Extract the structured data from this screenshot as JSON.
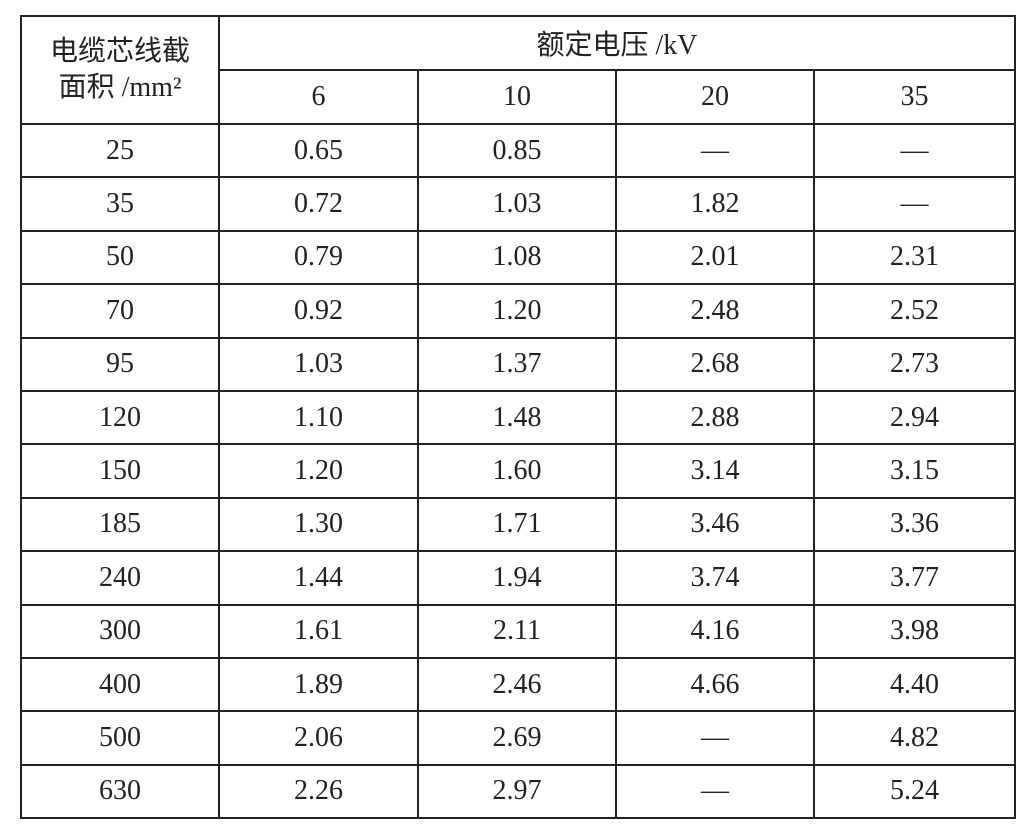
{
  "table": {
    "row_header_lines": [
      "电缆芯线截",
      "面积 /mm²"
    ],
    "group_header": "额定电压 /kV",
    "voltages": [
      "6",
      "10",
      "20",
      "35"
    ],
    "rows": [
      [
        "25",
        "0.65",
        "0.85",
        "—",
        "—"
      ],
      [
        "35",
        "0.72",
        "1.03",
        "1.82",
        "—"
      ],
      [
        "50",
        "0.79",
        "1.08",
        "2.01",
        "2.31"
      ],
      [
        "70",
        "0.92",
        "1.20",
        "2.48",
        "2.52"
      ],
      [
        "95",
        "1.03",
        "1.37",
        "2.68",
        "2.73"
      ],
      [
        "120",
        "1.10",
        "1.48",
        "2.88",
        "2.94"
      ],
      [
        "150",
        "1.20",
        "1.60",
        "3.14",
        "3.15"
      ],
      [
        "185",
        "1.30",
        "1.71",
        "3.46",
        "3.36"
      ],
      [
        "240",
        "1.44",
        "1.94",
        "3.74",
        "3.77"
      ],
      [
        "300",
        "1.61",
        "2.11",
        "4.16",
        "3.98"
      ],
      [
        "400",
        "1.89",
        "2.46",
        "4.66",
        "4.40"
      ],
      [
        "500",
        "2.06",
        "2.69",
        "—",
        "4.82"
      ],
      [
        "630",
        "2.26",
        "2.97",
        "—",
        "5.24"
      ]
    ]
  }
}
